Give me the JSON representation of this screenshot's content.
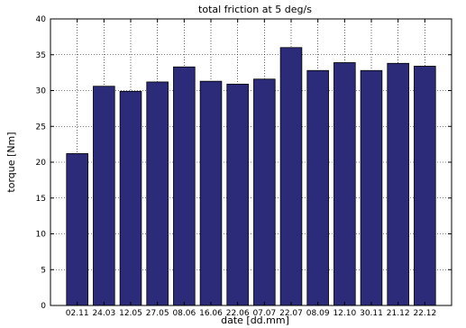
{
  "chart_data": {
    "type": "bar",
    "title": "total friction at 5 deg/s",
    "xlabel": "date [dd.mm]",
    "ylabel": "torque [Nm]",
    "categories": [
      "02.11",
      "24.03",
      "12.05",
      "27.05",
      "08.06",
      "16.06",
      "22.06",
      "07.07",
      "22.07",
      "08.09",
      "12.10",
      "30.11",
      "21.12",
      "22.12"
    ],
    "values": [
      21.2,
      30.6,
      29.9,
      31.2,
      33.3,
      31.3,
      30.9,
      31.6,
      36.0,
      32.8,
      33.9,
      32.8,
      33.8,
      33.4
    ],
    "ylim": [
      0,
      40
    ],
    "yticks": [
      0,
      5,
      10,
      15,
      20,
      25,
      30,
      35,
      40
    ],
    "grid": true,
    "colors": {
      "bar": "#2b2b7a",
      "bar_edge": "#000000",
      "grid": "#000000"
    }
  }
}
